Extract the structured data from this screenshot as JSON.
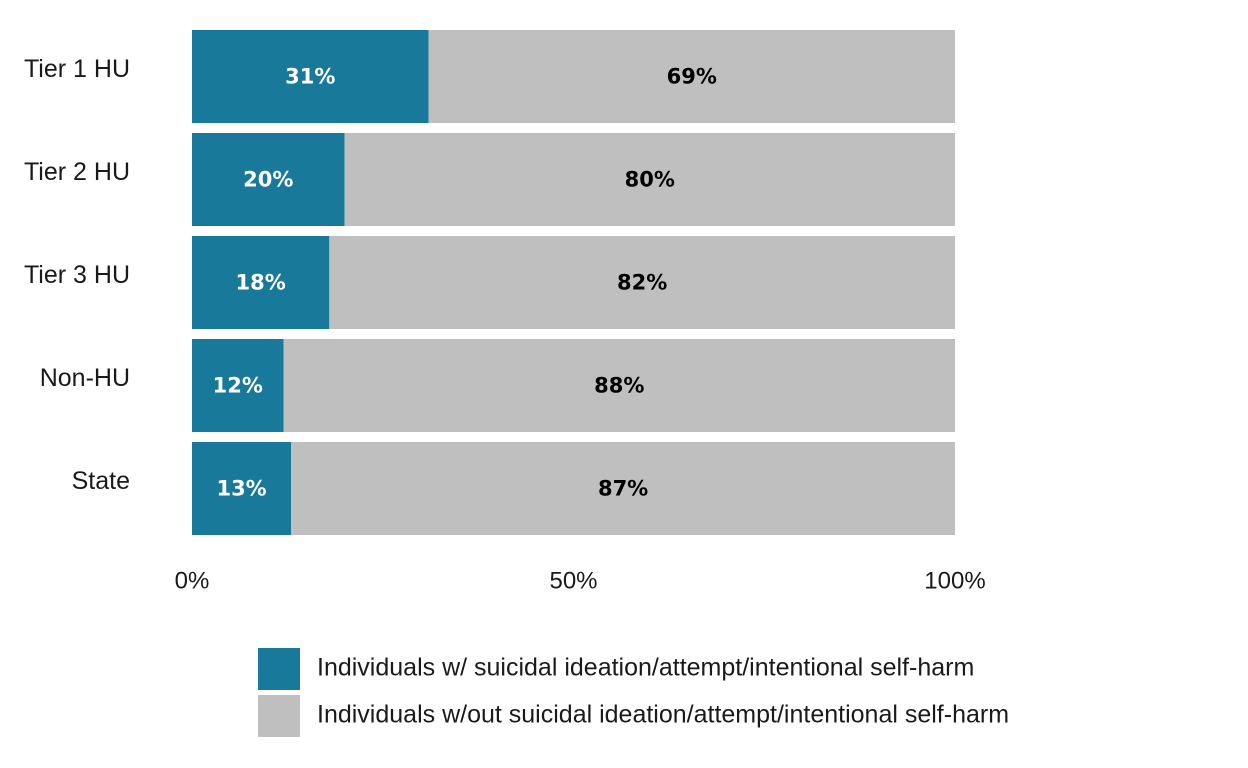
{
  "chart_data": {
    "type": "bar",
    "orientation": "horizontal",
    "stacked": true,
    "categories": [
      "Tier 1 HU",
      "Tier 2 HU",
      "Tier 3 HU",
      "Non-HU",
      "State"
    ],
    "series": [
      {
        "name": "Individuals w/ suicidal ideation/attempt/intentional self-harm",
        "color": "#18799b",
        "label_color": "#ffffff",
        "values": [
          31,
          20,
          18,
          12,
          13
        ],
        "labels": [
          "31%",
          "20%",
          "18%",
          "12%",
          "13%"
        ]
      },
      {
        "name": "Individuals w/out suicidal ideation/attempt/intentional self-harm",
        "color": "#bfbfbf",
        "label_color": "#000000",
        "values": [
          69,
          80,
          82,
          88,
          87
        ],
        "labels": [
          "69%",
          "80%",
          "82%",
          "88%",
          "87%"
        ]
      }
    ],
    "xlim": [
      0,
      100
    ],
    "x_ticks": [
      0,
      50,
      100
    ],
    "x_tick_labels": [
      "0%",
      "50%",
      "100%"
    ],
    "grid": false,
    "legend_position": "bottom"
  }
}
